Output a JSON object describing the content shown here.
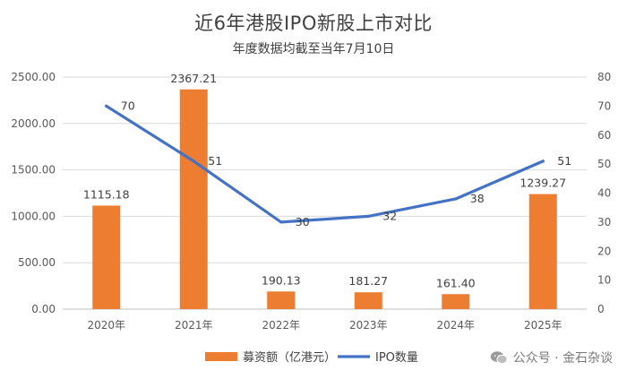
{
  "chart": {
    "title": "近6年港股IPO新股上市对比",
    "subtitle": "年度数据均截至当年7月10日"
  },
  "chart_data": {
    "type": "bar",
    "categories": [
      "2020年",
      "2021年",
      "2022年",
      "2023年",
      "2024年",
      "2025年"
    ],
    "series": [
      {
        "name": "募资额（亿港元）",
        "type": "bar",
        "axis": "left",
        "color": "#ED7D31",
        "values": [
          1115.18,
          2367.21,
          190.13,
          181.27,
          161.4,
          1239.27
        ],
        "labels": [
          "1115.18",
          "2367.21",
          "190.13",
          "181.27",
          "161.40",
          "1239.27"
        ]
      },
      {
        "name": "IPO数量",
        "type": "line",
        "axis": "right",
        "color": "#4472C4",
        "values": [
          70,
          51,
          30,
          32,
          38,
          51
        ],
        "labels": [
          "70",
          "51",
          "30",
          "32",
          "38",
          "51"
        ]
      }
    ],
    "y_left": {
      "range": [
        0,
        2500
      ],
      "ticks": [
        0,
        500,
        1000,
        1500,
        2000,
        2500
      ],
      "tick_labels": [
        "0.00",
        "500.00",
        "1000.00",
        "1500.00",
        "2000.00",
        "2500.00"
      ]
    },
    "y_right": {
      "range": [
        0,
        80
      ],
      "ticks": [
        0,
        10,
        20,
        30,
        40,
        50,
        60,
        70,
        80
      ],
      "tick_labels": [
        "0",
        "10",
        "20",
        "30",
        "40",
        "50",
        "60",
        "70",
        "80"
      ]
    },
    "grid": true,
    "legend_position": "bottom"
  },
  "watermark": {
    "text": "公众号 · 金石杂谈",
    "icon": "wechat-icon"
  }
}
